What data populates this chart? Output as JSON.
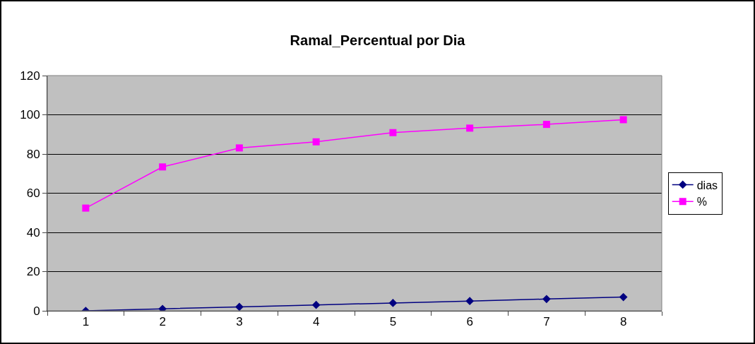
{
  "chart_data": {
    "type": "line",
    "title": "Ramal_Percentual por Dia",
    "categories": [
      "1",
      "2",
      "3",
      "4",
      "5",
      "6",
      "7",
      "8"
    ],
    "series": [
      {
        "name": "dias",
        "color": "#000080",
        "marker": "diamond",
        "values": [
          0,
          1,
          2,
          3,
          4,
          5,
          6,
          7
        ]
      },
      {
        "name": "%",
        "color": "#ff00ff",
        "marker": "square",
        "values": [
          52.4,
          73.4,
          83.1,
          86.2,
          90.9,
          93.2,
          95.1,
          97.5
        ]
      }
    ],
    "ylim": [
      0,
      120
    ],
    "yticks": [
      0,
      20,
      40,
      60,
      80,
      100,
      120
    ],
    "grid": "y",
    "legend": "right"
  }
}
